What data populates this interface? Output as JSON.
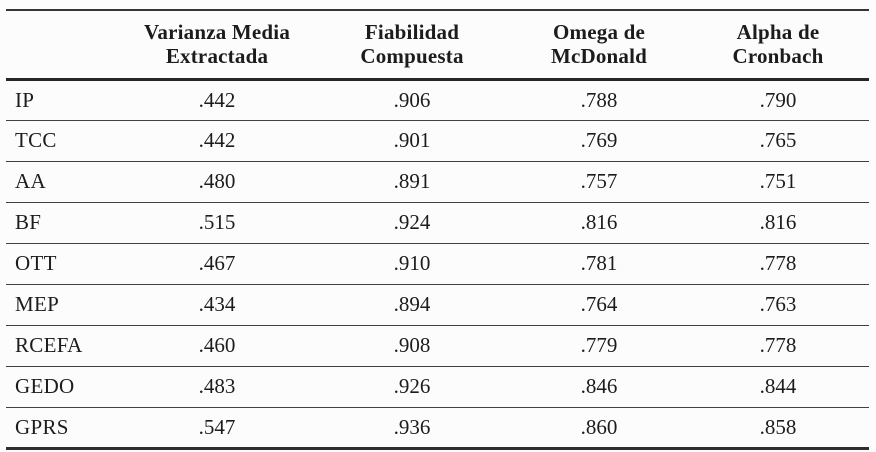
{
  "table": {
    "title_semantic": "Reliability and validity statistics table",
    "corner_label": "",
    "headers": [
      "Varianza Media\nExtractada",
      "Fiabilidad\nCompuesta",
      "Omega de\nMcDonald",
      "Alpha de\nCronbach"
    ],
    "rows": [
      {
        "label": "IP",
        "values": [
          ".442",
          ".906",
          ".788",
          ".790"
        ]
      },
      {
        "label": "TCC",
        "values": [
          ".442",
          ".901",
          ".769",
          ".765"
        ]
      },
      {
        "label": "AA",
        "values": [
          ".480",
          ".891",
          ".757",
          ".751"
        ]
      },
      {
        "label": "BF",
        "values": [
          ".515",
          ".924",
          ".816",
          ".816"
        ]
      },
      {
        "label": "OTT",
        "values": [
          ".467",
          ".910",
          ".781",
          ".778"
        ]
      },
      {
        "label": "MEP",
        "values": [
          ".434",
          ".894",
          ".764",
          ".763"
        ]
      },
      {
        "label": "RCEFA",
        "values": [
          ".460",
          ".908",
          ".779",
          ".778"
        ]
      },
      {
        "label": "GEDO",
        "values": [
          ".483",
          ".926",
          ".846",
          ".844"
        ]
      },
      {
        "label": "GPRS",
        "values": [
          ".547",
          ".936",
          ".860",
          ".858"
        ]
      }
    ]
  },
  "colors": {
    "background": "#fcfcfc",
    "text": "#1c1c1c",
    "rule_thick": "#262626",
    "rule_thin": "#414141"
  }
}
